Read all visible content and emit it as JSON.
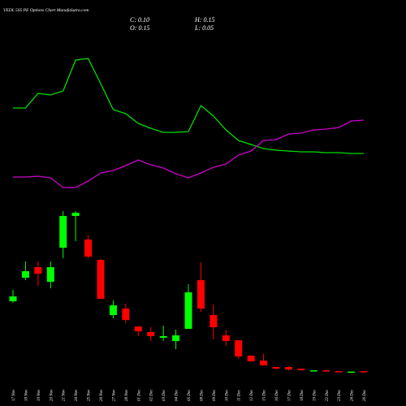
{
  "header": {
    "title": "VEDL 505 PE Options  Chart MunafaSutra.com",
    "close": "C: 0.10",
    "high": "H: 0.15",
    "open": "O: 0.15",
    "low": "L: 0.05"
  },
  "chart_data": {
    "type": "candlestick",
    "categories": [
      "17 Nov",
      "18 Nov",
      "19 Nov",
      "20 Nov",
      "21 Nov",
      "24 Nov",
      "25 Nov",
      "26 Nov",
      "27 Nov",
      "28 Nov",
      "01 Dec",
      "02 Dec",
      "03 Dec",
      "04 Dec",
      "05 Dec",
      "08 Dec",
      "09 Dec",
      "10 Dec",
      "11 Dec",
      "12 Dec",
      "15 Dec",
      "16 Dec",
      "17 Dec",
      "18 Dec",
      "19 Dec",
      "22 Dec",
      "23 Dec",
      "24 Dec",
      "26 Dec"
    ],
    "open": [
      4.45,
      5.9,
      6.55,
      5.65,
      7.75,
      9.7,
      8.25,
      7.0,
      3.6,
      4.0,
      2.9,
      2.55,
      2.2,
      2.0,
      2.75,
      5.75,
      3.6,
      2.35,
      2.05,
      1.1,
      0.8,
      0.4,
      0.4,
      0.3,
      0.15,
      0.2,
      0.15,
      0.1,
      0.15
    ],
    "high": [
      5.15,
      6.9,
      6.9,
      6.9,
      10.0,
      10.0,
      8.5,
      7.05,
      4.5,
      4.3,
      2.9,
      2.85,
      2.95,
      2.7,
      5.5,
      6.85,
      4.25,
      2.7,
      2.05,
      1.1,
      1.2,
      0.4,
      0.45,
      0.3,
      0.2,
      0.2,
      0.15,
      0.12,
      0.15
    ],
    "low": [
      4.35,
      5.75,
      5.4,
      5.25,
      7.1,
      8.15,
      7.1,
      4.6,
      3.4,
      3.1,
      2.3,
      2.0,
      2.0,
      1.5,
      2.75,
      3.8,
      2.1,
      1.7,
      0.9,
      0.75,
      0.5,
      0.3,
      0.2,
      0.2,
      0.15,
      0.15,
      0.1,
      0.1,
      0.05
    ],
    "close": [
      4.75,
      6.3,
      6.15,
      6.55,
      9.7,
      9.9,
      7.2,
      4.6,
      4.2,
      3.3,
      2.6,
      2.3,
      2.3,
      2.35,
      5.0,
      4.0,
      2.85,
      2.0,
      1.05,
      0.75,
      0.5,
      0.3,
      0.25,
      0.2,
      0.2,
      0.15,
      0.12,
      0.12,
      0.1
    ],
    "up_color": "#00ff00",
    "down_color": "#ff0000",
    "lines": [
      {
        "color": "#00dd00",
        "values": [
          16.35,
          16.35,
          17.25,
          17.15,
          17.4,
          19.3,
          19.4,
          17.85,
          16.25,
          16.0,
          15.4,
          15.1,
          14.85,
          14.85,
          14.9,
          16.5,
          15.85,
          15.0,
          14.35,
          14.1,
          13.85,
          13.75,
          13.7,
          13.65,
          13.65,
          13.6,
          13.6,
          13.55,
          13.55
        ]
      },
      {
        "color": "#cc00cc",
        "values": [
          12.1,
          12.1,
          12.15,
          12.05,
          11.45,
          11.45,
          11.85,
          12.35,
          12.5,
          12.8,
          13.15,
          12.85,
          12.65,
          12.3,
          12.05,
          12.35,
          12.7,
          12.9,
          13.45,
          13.7,
          14.35,
          14.4,
          14.75,
          14.8,
          15.0,
          15.05,
          15.15,
          15.55,
          15.6
        ]
      }
    ],
    "ylim": [
      0,
      23
    ]
  }
}
